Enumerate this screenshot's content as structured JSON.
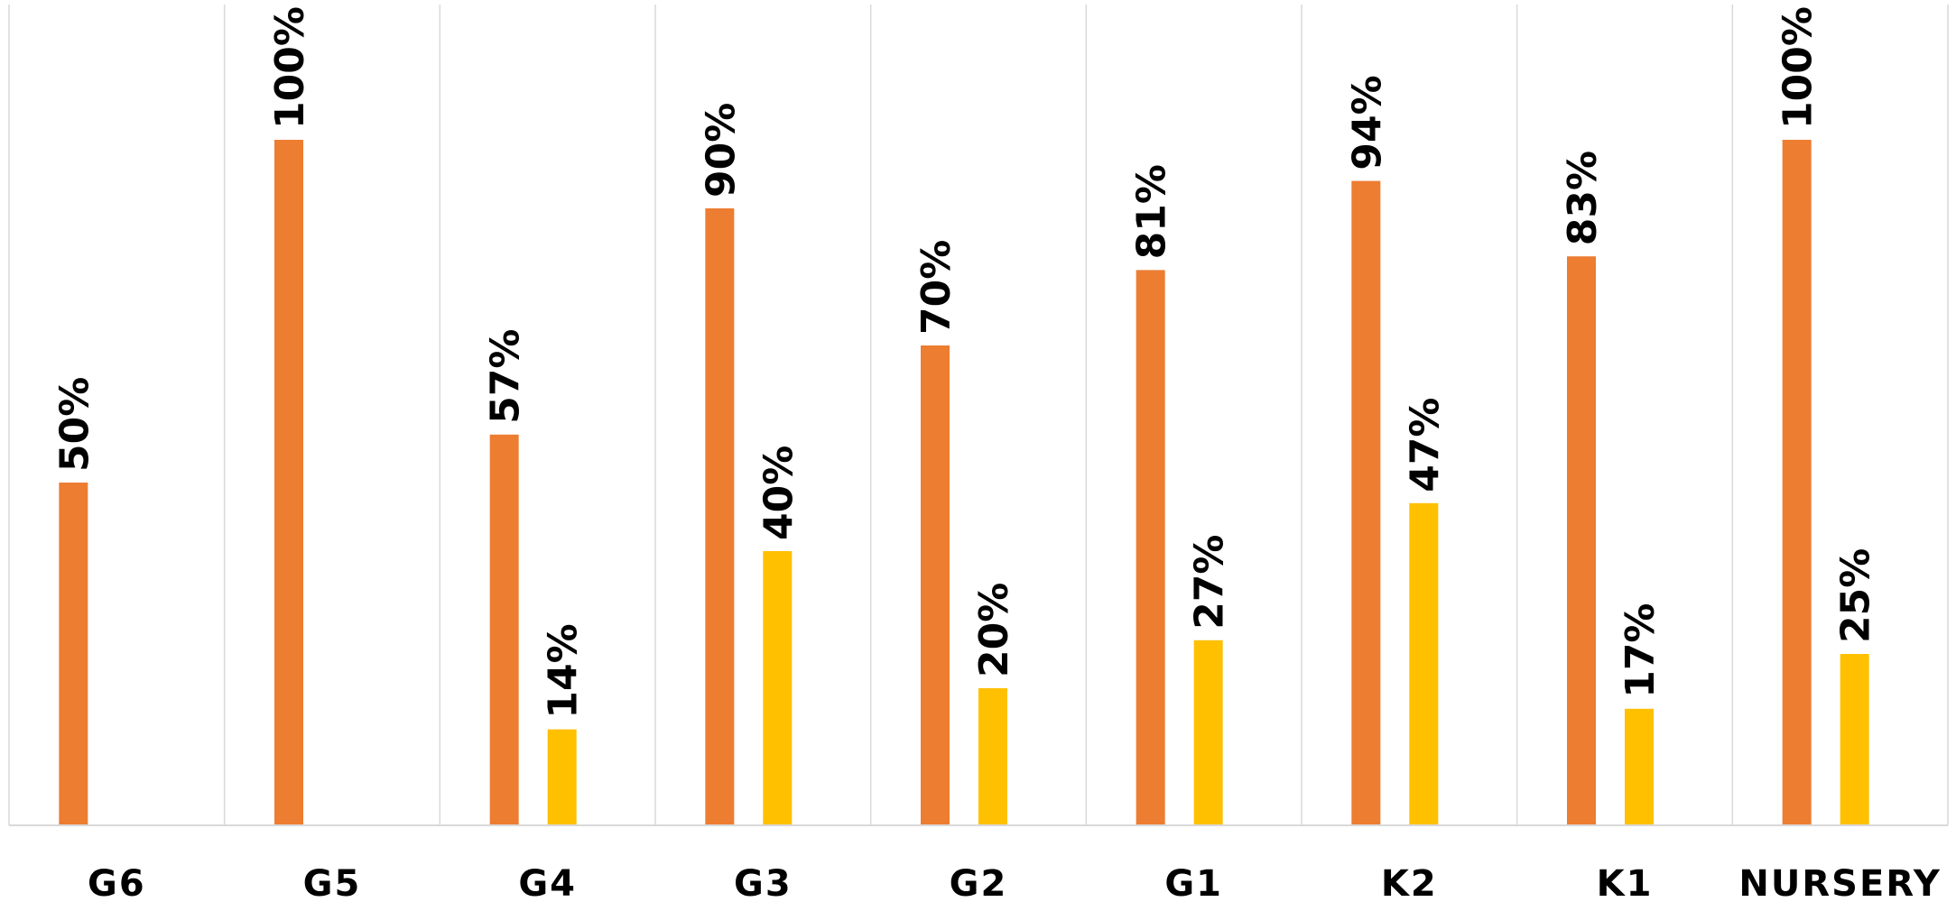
{
  "chart_data": {
    "type": "bar",
    "title": "",
    "xlabel": "",
    "ylabel": "",
    "ylim": [
      0,
      120
    ],
    "grid": "vertical category separators",
    "legend": "none",
    "categories": [
      "G6",
      "G5",
      "G4",
      "G3",
      "G2",
      "G1",
      "K2",
      "K1",
      "NURSERY"
    ],
    "series": [
      {
        "color": "#ED7D31",
        "values": [
          50,
          100,
          57,
          90,
          70,
          81,
          94,
          83,
          100
        ],
        "labels": [
          "50%",
          "100%",
          "57%",
          "90%",
          "70%",
          "81%",
          "94%",
          "83%",
          "100%"
        ]
      },
      {
        "color": "#FFC000",
        "values": [
          null,
          null,
          14,
          40,
          20,
          27,
          47,
          17,
          25
        ],
        "labels": [
          null,
          null,
          "14%",
          "40%",
          "20%",
          "27%",
          "47%",
          "17%",
          "25%"
        ]
      }
    ]
  }
}
